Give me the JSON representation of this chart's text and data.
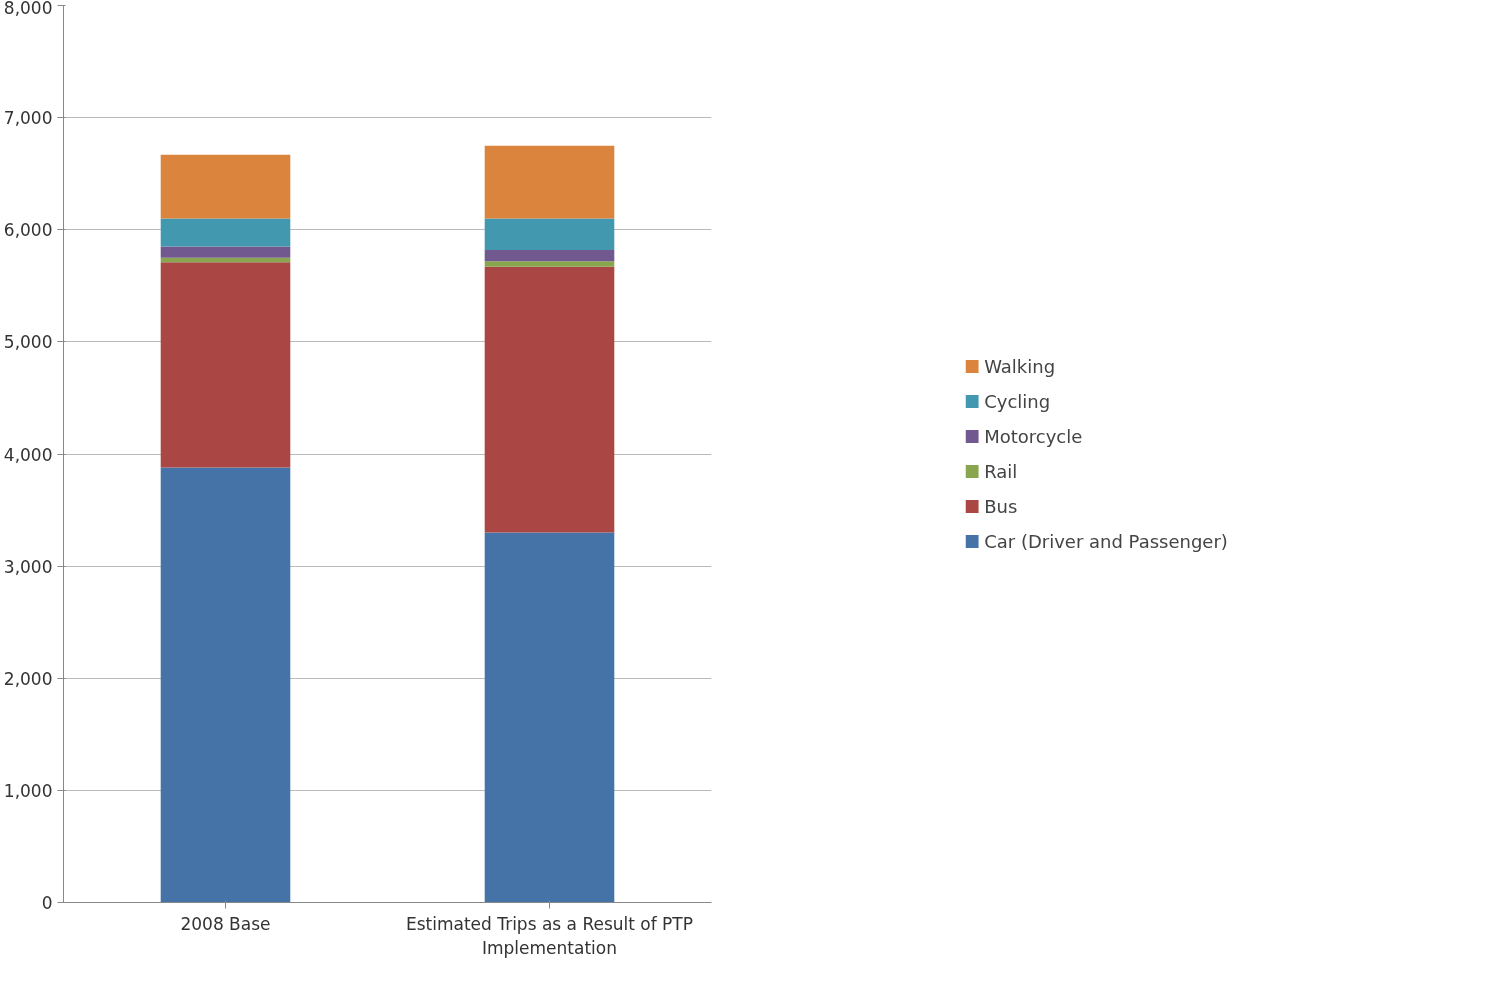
{
  "chart_data": {
    "type": "bar",
    "stacked": true,
    "categories": [
      "2008 Base",
      "Estimated Trips as a Result of PTP Implementation"
    ],
    "series": [
      {
        "name": "Car (Driver and Passenger)",
        "color": "#4572a7",
        "values": [
          3880,
          3300
        ]
      },
      {
        "name": "Bus",
        "color": "#aa4643",
        "values": [
          1830,
          2370
        ]
      },
      {
        "name": "Rail",
        "color": "#89a54e",
        "values": [
          40,
          50
        ]
      },
      {
        "name": "Motorcycle",
        "color": "#71588f",
        "values": [
          100,
          100
        ]
      },
      {
        "name": "Cycling",
        "color": "#4198af",
        "values": [
          250,
          280
        ]
      },
      {
        "name": "Walking",
        "color": "#db843d",
        "values": [
          570,
          650
        ]
      }
    ],
    "ylim": [
      0,
      8000
    ],
    "yticks": [
      {
        "value": 0,
        "label": "0"
      },
      {
        "value": 1000,
        "label": "1,000"
      },
      {
        "value": 2000,
        "label": "2,000"
      },
      {
        "value": 3000,
        "label": "3,000"
      },
      {
        "value": 4000,
        "label": "4,000"
      },
      {
        "value": 5000,
        "label": "5,000"
      },
      {
        "value": 6000,
        "label": "6,000"
      },
      {
        "value": 7000,
        "label": "7,000"
      },
      {
        "value": 8000,
        "label": "8,000"
      }
    ],
    "grid": "y",
    "legend": "right"
  }
}
